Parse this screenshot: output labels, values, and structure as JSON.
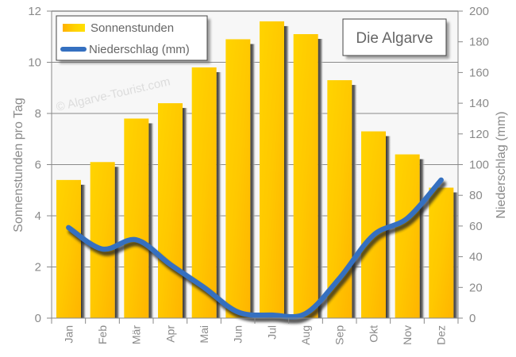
{
  "chart_data": {
    "type": "bar+line",
    "title": "Die Algarve",
    "watermark": "© Algarve-Tourist.com",
    "categories": [
      "Jan",
      "Feb",
      "Mär",
      "Apr",
      "Mai",
      "Jun",
      "Jul",
      "Aug",
      "Sep",
      "Okt",
      "Nov",
      "Dez"
    ],
    "series": [
      {
        "name": "Sonnenstunden",
        "type": "bar",
        "axis": "left",
        "color": "#ffc400",
        "values": [
          5.4,
          6.1,
          7.8,
          8.4,
          9.8,
          10.9,
          11.6,
          11.1,
          9.3,
          7.3,
          6.4,
          5.1
        ]
      },
      {
        "name": "Niederschlag (mm)",
        "type": "line",
        "axis": "right",
        "color": "#3570c0",
        "values": [
          59,
          45,
          51,
          35,
          20,
          4,
          2,
          3,
          26,
          54,
          65,
          90
        ]
      }
    ],
    "ylabel": "Sonnenstunden pro Tag",
    "ylabel_right": "Niederschlag (mm)",
    "ylim": [
      0,
      12
    ],
    "ylim_right": [
      0,
      200
    ],
    "yticks": [
      0,
      2,
      4,
      6,
      8,
      10,
      12
    ],
    "yticks_right": [
      0,
      20,
      40,
      60,
      80,
      100,
      120,
      140,
      160,
      180,
      200
    ],
    "grid": true,
    "legend_position": "top-left"
  },
  "legend": {
    "items": [
      {
        "label": "Sonnenstunden"
      },
      {
        "label": "Niederschlag (mm)"
      }
    ]
  }
}
